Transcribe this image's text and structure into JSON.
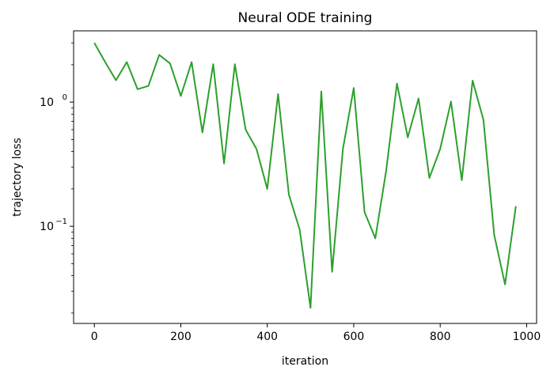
{
  "chart_data": {
    "type": "line",
    "title": "Neural ODE training",
    "xlabel": "iteration",
    "ylabel": "trajectory loss",
    "xscale": "linear",
    "yscale": "log",
    "xlim": [
      -48,
      1023
    ],
    "ylim": [
      0.0165,
      3.75
    ],
    "xticks": [
      0,
      200,
      400,
      600,
      800,
      1000
    ],
    "xtick_labels": [
      "0",
      "200",
      "400",
      "600",
      "800",
      "1000"
    ],
    "yticks_major": [
      0.1,
      1
    ],
    "ytick_labels": [
      {
        "base": "10",
        "exp": "−1"
      },
      {
        "base": "10",
        "exp": "0"
      }
    ],
    "grid": false,
    "legend": "none",
    "series": [
      {
        "color": "#2ca02c",
        "x": [
          0,
          25,
          50,
          75,
          100,
          125,
          150,
          175,
          200,
          225,
          250,
          275,
          300,
          325,
          350,
          375,
          400,
          425,
          450,
          475,
          500,
          525,
          550,
          575,
          600,
          625,
          650,
          675,
          700,
          725,
          750,
          775,
          800,
          825,
          850,
          875,
          900,
          925,
          950,
          975
        ],
        "y": [
          3.0,
          2.1,
          1.5,
          2.1,
          1.27,
          1.35,
          2.4,
          2.05,
          1.12,
          2.1,
          0.57,
          2.02,
          0.32,
          2.02,
          0.6,
          0.42,
          0.2,
          1.16,
          0.18,
          0.094,
          0.022,
          1.22,
          0.043,
          0.42,
          1.3,
          0.13,
          0.08,
          0.28,
          1.41,
          0.52,
          1.07,
          0.245,
          0.42,
          1.01,
          0.235,
          1.49,
          0.72,
          0.085,
          0.034,
          0.145
        ]
      }
    ]
  }
}
